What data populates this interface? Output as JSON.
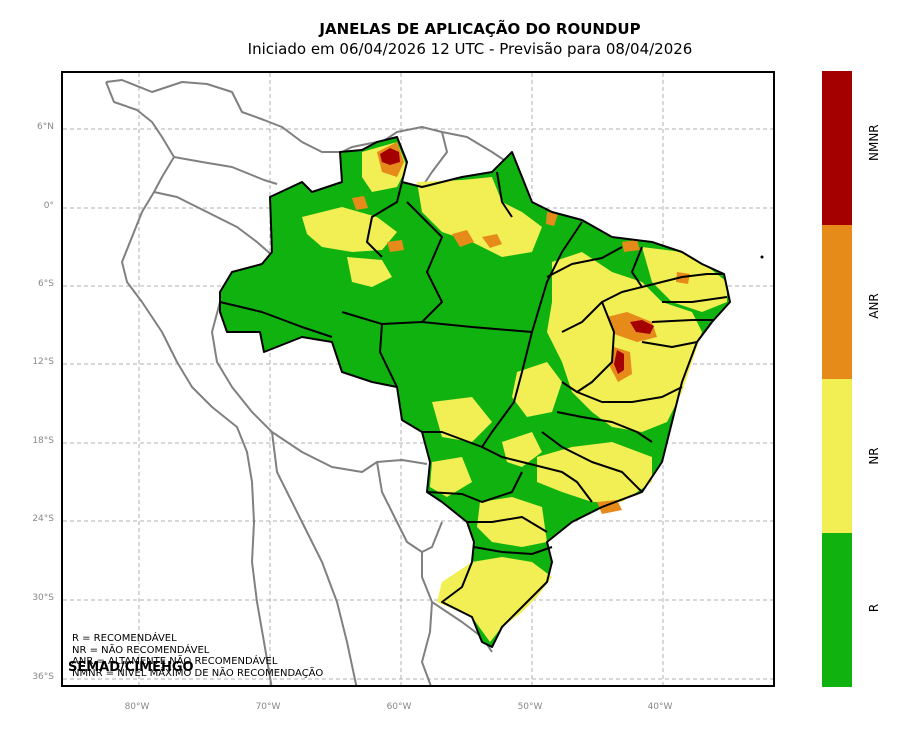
{
  "title": "JANELAS DE APLICAÇÃO DO ROUNDUP",
  "subtitle": "Iniciado em 06/04/2026 12 UTC - Previsão para 08/04/2026",
  "latitude_ticks": [
    "6°N",
    "0°",
    "6°S",
    "12°S",
    "18°S",
    "24°S",
    "30°S",
    "36°S"
  ],
  "longitude_ticks": [
    "80°W",
    "70°W",
    "60°W",
    "50°W",
    "40°W"
  ],
  "legend": {
    "lines": [
      "R = RECOMENDÁVEL",
      "NR = NÃO RECOMENDÁVEL",
      "ANR = ALTAMENTE NÃO RECOMENDÁVEL",
      "NMNR = NÍVEL MÁXIMO DE NÃO RECOMENDAÇÃO"
    ]
  },
  "credit": "SEMAD/CIMEHGO",
  "colorbar": {
    "classes": [
      {
        "label": "NMNR",
        "color": "#a50000"
      },
      {
        "label": "ANR",
        "color": "#e68a1a"
      },
      {
        "label": "NR",
        "color": "#f2ef55"
      },
      {
        "label": "R",
        "color": "#10b20f"
      }
    ]
  },
  "colors": {
    "recommended": "#10b20f",
    "not_recommended": "#f2ef55",
    "highly_not_recommended": "#e68a1a",
    "max_not_recommended": "#a50000",
    "country_border": "#808080",
    "state_border": "#000000",
    "grid": "#b0b0b0"
  }
}
